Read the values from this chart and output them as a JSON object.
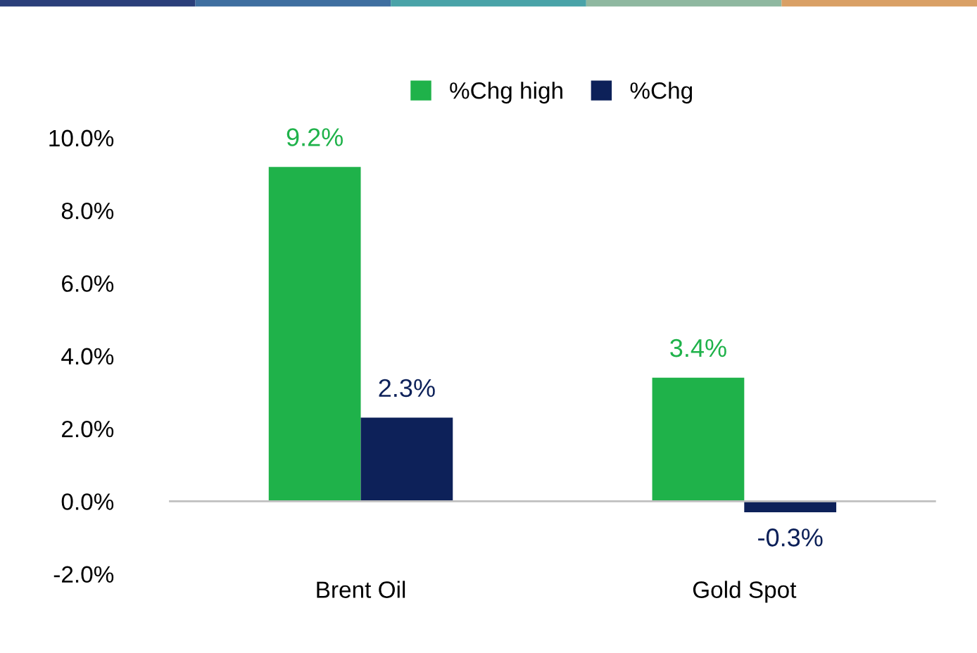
{
  "chart_data": {
    "type": "bar",
    "categories": [
      "Brent Oil",
      "Gold Spot"
    ],
    "series": [
      {
        "name": "%Chg high",
        "color": "#1fb24a",
        "values": [
          9.2,
          3.4
        ],
        "value_labels": [
          "9.2%",
          "3.4%"
        ]
      },
      {
        "name": "%Chg",
        "color": "#0d2159",
        "values": [
          2.3,
          -0.3
        ],
        "value_labels": [
          "2.3%",
          "-0.3%"
        ]
      }
    ],
    "ylim": [
      -2,
      10
    ],
    "yticks": [
      {
        "value": -2,
        "label": "-2.0%"
      },
      {
        "value": 0,
        "label": "0.0%"
      },
      {
        "value": 2,
        "label": "2.0%"
      },
      {
        "value": 4,
        "label": "4.0%"
      },
      {
        "value": 6,
        "label": "6.0%"
      },
      {
        "value": 8,
        "label": "8.0%"
      },
      {
        "value": 10,
        "label": "10.0%"
      }
    ],
    "grid": false,
    "ref_lines": [
      {
        "axis": "y",
        "value": 0,
        "color": "#bfbfbf"
      }
    ],
    "legend": "top"
  }
}
